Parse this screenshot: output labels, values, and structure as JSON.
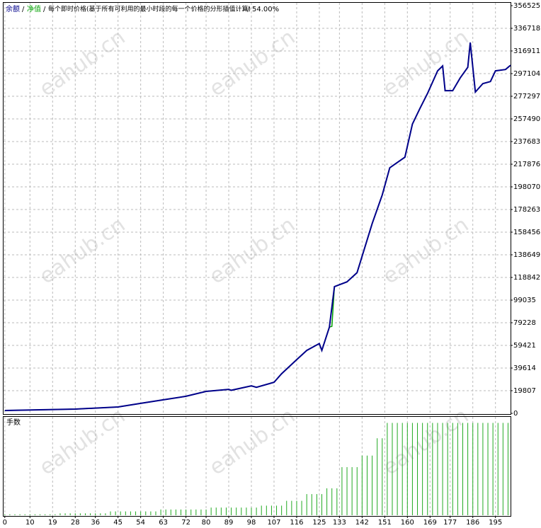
{
  "watermark": "eahub.cn",
  "header": {
    "separator": "/",
    "mode_label": "每个即时价格(基于所有可利用的最小时段的每一个价格的分形插值计算)",
    "quality": "54.00%"
  },
  "chart_data": [
    {
      "type": "line",
      "xlim": [
        -0.5,
        201
      ],
      "ylim": [
        0,
        356525
      ],
      "yticks": [
        0,
        19807,
        39614,
        59421,
        79228,
        99035,
        118842,
        138649,
        158456,
        178263,
        198070,
        217876,
        237683,
        257490,
        277297,
        297104,
        316911,
        336718,
        356525
      ],
      "grid": true,
      "series": [
        {
          "name": "净值",
          "color": "#00a000",
          "x": [
            0,
            28,
            45,
            54,
            63,
            72,
            80,
            89,
            90,
            98,
            100,
            107,
            110,
            116,
            120,
            125,
            126,
            129,
            130,
            131,
            136,
            140,
            146,
            150,
            153,
            155,
            159,
            162,
            165,
            168,
            172,
            174,
            175,
            178,
            181,
            184,
            185,
            187,
            190,
            193,
            195,
            199,
            201
          ],
          "values": [
            2500,
            3700,
            5600,
            8700,
            11800,
            14900,
            19200,
            21000,
            20200,
            24000,
            22800,
            27200,
            34600,
            47000,
            55000,
            61000,
            55000,
            75500,
            76000,
            110800,
            115000,
            123000,
            166000,
            191000,
            214700,
            217800,
            224000,
            253000,
            266700,
            279700,
            299500,
            303800,
            282200,
            282200,
            293300,
            302600,
            324300,
            281000,
            288400,
            290200,
            299500,
            300700,
            304400
          ]
        },
        {
          "name": "余额",
          "color": "#00008b",
          "x": [
            0,
            28,
            45,
            54,
            63,
            72,
            80,
            89,
            90,
            98,
            100,
            107,
            110,
            116,
            120,
            125,
            126,
            129,
            131,
            136,
            140,
            146,
            150,
            153,
            155,
            159,
            162,
            165,
            168,
            172,
            174,
            175,
            178,
            181,
            184,
            185,
            187,
            190,
            193,
            195,
            199,
            201
          ],
          "values": [
            2500,
            3700,
            5600,
            8700,
            11800,
            14900,
            19200,
            21000,
            20200,
            24000,
            22800,
            27200,
            34600,
            47000,
            55000,
            61000,
            55000,
            75500,
            110800,
            115000,
            123000,
            166000,
            191000,
            214700,
            217800,
            224000,
            253000,
            266700,
            279700,
            299500,
            303800,
            282200,
            282200,
            293300,
            302600,
            324300,
            281000,
            288400,
            290200,
            299500,
            300700,
            304400
          ]
        }
      ]
    },
    {
      "type": "bar",
      "title": "手数",
      "color": "#22aa22",
      "xlim": [
        -0.5,
        201
      ],
      "ylim": [
        0,
        1
      ],
      "xticks": [
        0,
        10,
        19,
        28,
        36,
        45,
        54,
        63,
        72,
        80,
        89,
        98,
        107,
        116,
        125,
        133,
        142,
        151,
        160,
        169,
        177,
        186,
        195
      ],
      "x": [
        0,
        2,
        4,
        6,
        8,
        10,
        12,
        14,
        16,
        18,
        20,
        22,
        24,
        26,
        28,
        30,
        32,
        34,
        36,
        38,
        40,
        42,
        44,
        46,
        48,
        50,
        52,
        54,
        56,
        58,
        60,
        62,
        64,
        66,
        68,
        70,
        72,
        74,
        76,
        78,
        80,
        82,
        84,
        86,
        88,
        90,
        92,
        94,
        96,
        98,
        100,
        102,
        104,
        106,
        108,
        110,
        112,
        114,
        116,
        118,
        120,
        122,
        124,
        126,
        128,
        130,
        132,
        134,
        136,
        138,
        140,
        142,
        144,
        146,
        148,
        150,
        152,
        154,
        156,
        158,
        160,
        162,
        164,
        166,
        168,
        170,
        172,
        174,
        176,
        178,
        180,
        182,
        184,
        186,
        188,
        190,
        192,
        194,
        196,
        198,
        200
      ],
      "values": [
        0.01,
        0.01,
        0.01,
        0.01,
        0.01,
        0.01,
        0.01,
        0.01,
        0.01,
        0.01,
        0.01,
        0.02,
        0.02,
        0.02,
        0.02,
        0.02,
        0.02,
        0.02,
        0.02,
        0.02,
        0.02,
        0.04,
        0.04,
        0.04,
        0.04,
        0.04,
        0.04,
        0.04,
        0.04,
        0.04,
        0.04,
        0.06,
        0.06,
        0.06,
        0.06,
        0.06,
        0.06,
        0.06,
        0.06,
        0.06,
        0.06,
        0.08,
        0.08,
        0.08,
        0.08,
        0.08,
        0.08,
        0.08,
        0.08,
        0.08,
        0.08,
        0.1,
        0.1,
        0.1,
        0.1,
        0.1,
        0.15,
        0.15,
        0.15,
        0.15,
        0.22,
        0.22,
        0.22,
        0.22,
        0.28,
        0.28,
        0.28,
        0.5,
        0.5,
        0.5,
        0.5,
        0.62,
        0.62,
        0.62,
        0.8,
        0.8,
        0.96,
        0.96,
        0.96,
        0.96,
        0.96,
        0.96,
        0.96,
        0.96,
        0.96,
        0.96,
        0.96,
        0.96,
        0.96,
        0.96,
        0.96,
        0.96,
        0.96,
        0.96,
        0.96,
        0.96,
        0.96,
        0.96,
        0.96,
        0.96,
        0.96
      ]
    }
  ]
}
